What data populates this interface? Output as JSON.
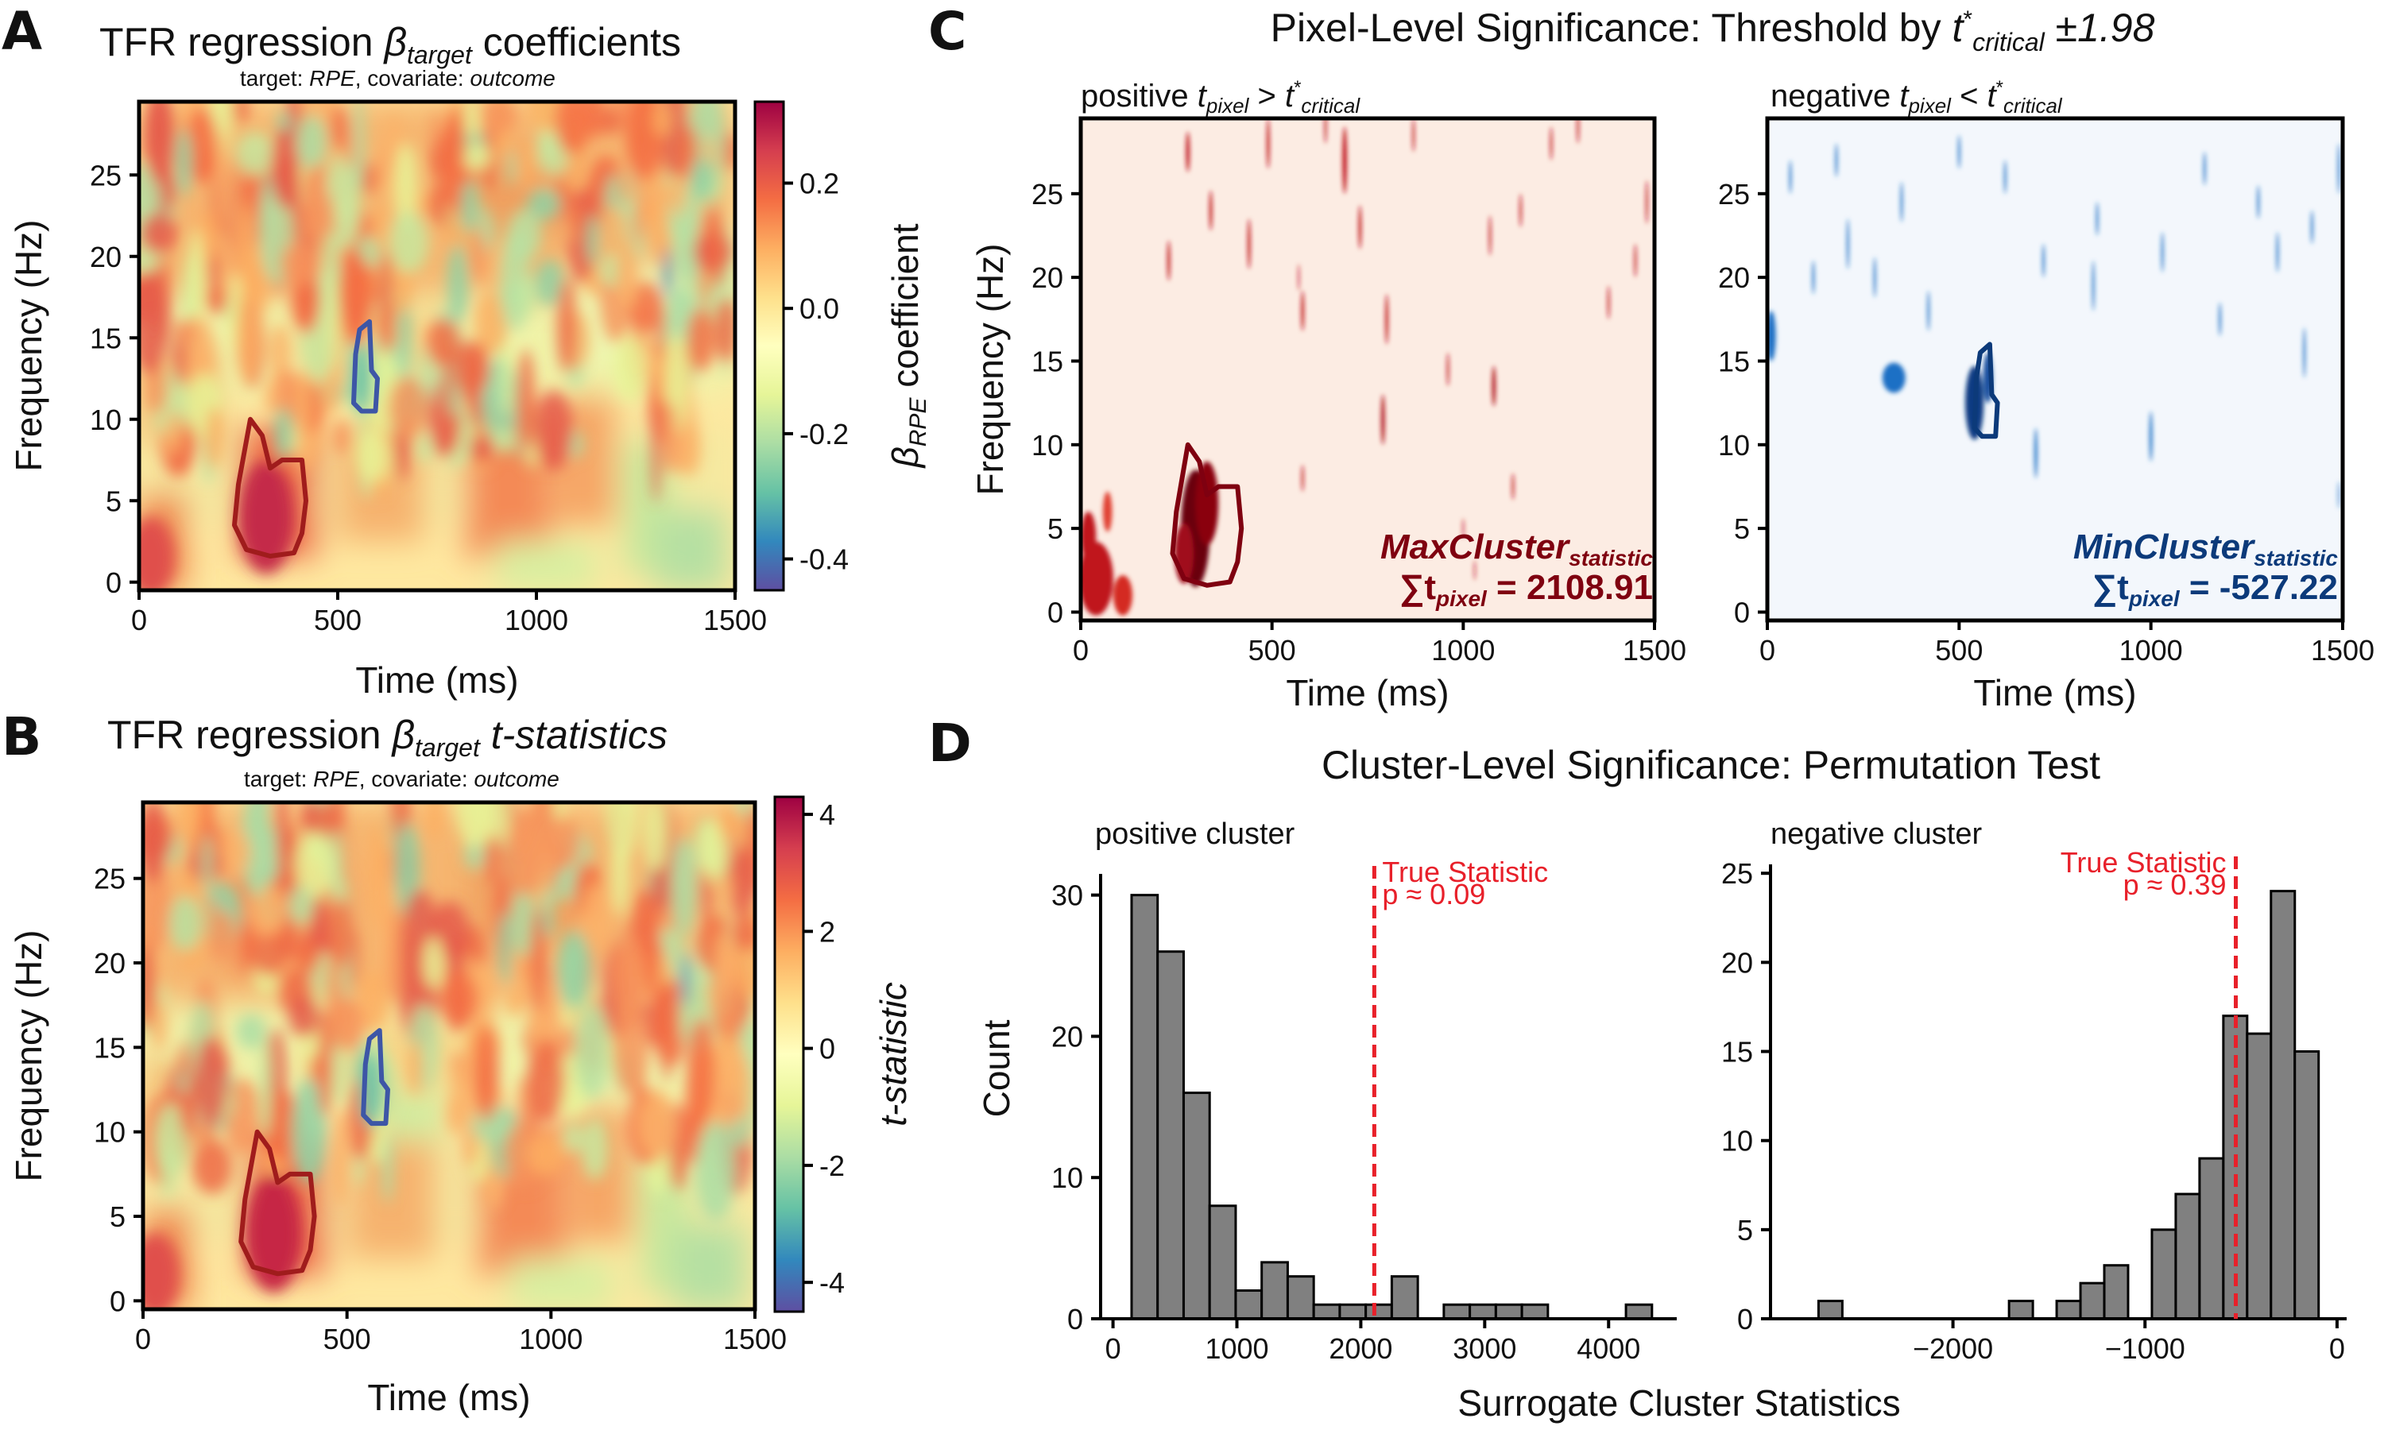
{
  "panels": {
    "A": {
      "letter": "A",
      "title_prefix": "TFR regression ",
      "title_beta": "β",
      "title_sub": "target",
      "title_suffix": " coefficients",
      "subtitle_a": "target: ",
      "subtitle_b": "RPE",
      "subtitle_c": ", covariate: ",
      "subtitle_d": "outcome",
      "colorbar_label_a": "β",
      "colorbar_label_sub": "RPE",
      "colorbar_label_b": " coefficient"
    },
    "B": {
      "letter": "B",
      "title_prefix": "TFR regression ",
      "title_beta": "β",
      "title_sub": "target",
      "title_suffix": " t-statistics",
      "subtitle_a": "target: ",
      "subtitle_b": "RPE",
      "subtitle_c": ", covariate: ",
      "subtitle_d": "outcome",
      "colorbar_label": "t-statistic"
    },
    "C": {
      "letter": "C",
      "title_main": "Pixel-Level Significance: Threshold by ",
      "title_t": "t",
      "title_sup": "*",
      "title_sub": "critical",
      "title_pm": " ±1.98",
      "pos_label_a": "positive ",
      "pos_label_b": " > ",
      "neg_label_a": "negative ",
      "neg_label_b": " < ",
      "t_pixel_t": "t",
      "t_pixel_sub": "pixel",
      "t_crit_t": "t",
      "t_crit_sup": "*",
      "t_crit_sub": "critical",
      "max_label": "MaxCluster",
      "max_sub": "statistic",
      "max_sum_a": "∑t",
      "max_sum_sub": "pixel",
      "max_sum_b": " = 2108.91",
      "min_label": "MinCluster",
      "min_sub": "statistic",
      "min_sum_a": "∑t",
      "min_sum_sub": "pixel",
      "min_sum_b": " = -527.22"
    },
    "D": {
      "letter": "D",
      "title": "Cluster-Level Significance: Permutation Test",
      "pos_title": "positive cluster",
      "neg_title": "negative cluster",
      "ylabel": "Count",
      "xlabel": "Surrogate Cluster Statistics",
      "true_stat": "True Statistic",
      "p_pos": "p ≈ 0.09",
      "p_neg": "p ≈ 0.39"
    }
  },
  "axis_labels": {
    "frequency": "Frequency (Hz)",
    "time": "Time (ms)"
  },
  "colors": {
    "positive_contour": "#a01c1c",
    "negative_contour": "#3d56a6",
    "dark_red": "#7f0010",
    "dark_blue": "#0c3a7a",
    "hist_bar": "#808080",
    "true_line": "#e8202a"
  },
  "chart_data": [
    {
      "id": "A",
      "type": "heatmap",
      "title": "TFR regression β target coefficients",
      "xlabel": "Time (ms)",
      "ylabel": "Frequency (Hz)",
      "xlim": [
        0,
        1500
      ],
      "ylim": [
        -0.5,
        29.5
      ],
      "xticks": [
        0,
        500,
        1000,
        1500
      ],
      "yticks": [
        0,
        5,
        10,
        15,
        20,
        25
      ],
      "colorbar": {
        "label": "β RPE coefficient",
        "range": [
          -0.45,
          0.33
        ],
        "ticks": [
          "0.2",
          "0.0",
          "-0.2",
          "-0.4"
        ],
        "tick_values": [
          0.2,
          0.0,
          -0.2,
          -0.4
        ],
        "colormap": "Spectral_r"
      },
      "contours": [
        {
          "sign": "positive",
          "time_ms": [
            280,
            310,
            330,
            360,
            410,
            420,
            410,
            390,
            330,
            270,
            240,
            250,
            280
          ],
          "freq_hz": [
            10,
            9,
            7,
            7.5,
            7.5,
            5,
            3,
            1.8,
            1.6,
            2,
            3.5,
            6,
            10
          ]
        },
        {
          "sign": "negative",
          "time_ms": [
            555,
            580,
            585,
            600,
            595,
            560,
            540,
            545,
            555
          ],
          "freq_hz": [
            15.5,
            16,
            13,
            12.5,
            10.5,
            10.5,
            11,
            14,
            15.5
          ]
        }
      ]
    },
    {
      "id": "B",
      "type": "heatmap",
      "title": "TFR regression β target t-statistics",
      "xlabel": "Time (ms)",
      "ylabel": "Frequency (Hz)",
      "xlim": [
        0,
        1500
      ],
      "ylim": [
        -0.5,
        29.5
      ],
      "xticks": [
        0,
        500,
        1000,
        1500
      ],
      "yticks": [
        0,
        5,
        10,
        15,
        20,
        25
      ],
      "colorbar": {
        "label": "t-statistic",
        "range": [
          -4.5,
          4.3
        ],
        "ticks": [
          "4",
          "2",
          "0",
          "-2",
          "-4"
        ],
        "tick_values": [
          4,
          2,
          0,
          -2,
          -4
        ],
        "colormap": "Spectral_r"
      },
      "contours": [
        {
          "sign": "positive",
          "time_ms": [
            280,
            310,
            330,
            360,
            410,
            420,
            410,
            390,
            330,
            270,
            240,
            250,
            280
          ],
          "freq_hz": [
            10,
            9,
            7,
            7.5,
            7.5,
            5,
            3,
            1.8,
            1.6,
            2,
            3.5,
            6,
            10
          ]
        },
        {
          "sign": "negative",
          "time_ms": [
            555,
            580,
            585,
            600,
            595,
            560,
            540,
            545,
            555
          ],
          "freq_hz": [
            15.5,
            16,
            13,
            12.5,
            10.5,
            10.5,
            11,
            14,
            15.5
          ]
        }
      ]
    },
    {
      "id": "C-positive",
      "type": "heatmap",
      "title": "positive t pixel > t* critical",
      "xlabel": "Time (ms)",
      "ylabel": "Frequency (Hz)",
      "xlim": [
        0,
        1500
      ],
      "ylim": [
        -0.5,
        29.5
      ],
      "xticks": [
        0,
        500,
        1000,
        1500
      ],
      "yticks": [
        0,
        5,
        10,
        15,
        20,
        25
      ],
      "annotation": "MaxCluster statistic ∑t pixel = 2108.91",
      "cluster_sum": 2108.91
    },
    {
      "id": "C-negative",
      "type": "heatmap",
      "title": "negative t pixel < t* critical",
      "xlabel": "Time (ms)",
      "xlim": [
        0,
        1500
      ],
      "ylim": [
        -0.5,
        29.5
      ],
      "xticks": [
        0,
        500,
        1000,
        1500
      ],
      "yticks": [
        0,
        5,
        10,
        15,
        20,
        25
      ],
      "annotation": "MinCluster statistic ∑t pixel = -527.22",
      "cluster_sum": -527.22
    },
    {
      "id": "D-positive",
      "type": "bar",
      "title": "positive cluster",
      "ylabel": "Count",
      "xlim": [
        -100,
        4550
      ],
      "ylim": [
        0,
        31.5
      ],
      "xticks": [
        0,
        1000,
        2000,
        3000,
        4000
      ],
      "yticks": [
        0,
        10,
        20,
        30
      ],
      "bin_width": 210,
      "bin_left_edges": [
        150,
        360,
        570,
        780,
        990,
        1200,
        1410,
        1620,
        1830,
        2040,
        2250,
        2460,
        2670,
        2880,
        3090,
        3300,
        3510,
        3720,
        3930,
        4140
      ],
      "counts": [
        30,
        26,
        16,
        8,
        2,
        4,
        3,
        1,
        1,
        1,
        3,
        0,
        1,
        1,
        1,
        1,
        0,
        0,
        0,
        1
      ],
      "true_statistic": 2108.91,
      "p_value": "p ≈ 0.09"
    },
    {
      "id": "D-negative",
      "type": "bar",
      "title": "negative cluster",
      "xlabel": "Surrogate Cluster Statistics",
      "xlim": [
        -2950,
        50
      ],
      "ylim": [
        0,
        25.5
      ],
      "xticks": [
        -2000,
        -1000,
        0
      ],
      "xticklabels": [
        "−2000",
        "−1000",
        "0"
      ],
      "yticks": [
        0,
        5,
        10,
        15,
        20,
        25
      ],
      "bin_width": 124,
      "bin_left_edges": [
        -2700,
        -2576,
        -2452,
        -2328,
        -2204,
        -2080,
        -1956,
        -1832,
        -1708,
        -1584,
        -1460,
        -1336,
        -1212,
        -1088,
        -964,
        -840,
        -716,
        -592,
        -468,
        -344,
        -220
      ],
      "counts": [
        1,
        0,
        0,
        0,
        0,
        0,
        0,
        0,
        1,
        0,
        1,
        2,
        3,
        0,
        5,
        7,
        9,
        17,
        16,
        24,
        15
      ],
      "true_statistic": -527.22,
      "p_value": "p ≈ 0.39"
    }
  ]
}
